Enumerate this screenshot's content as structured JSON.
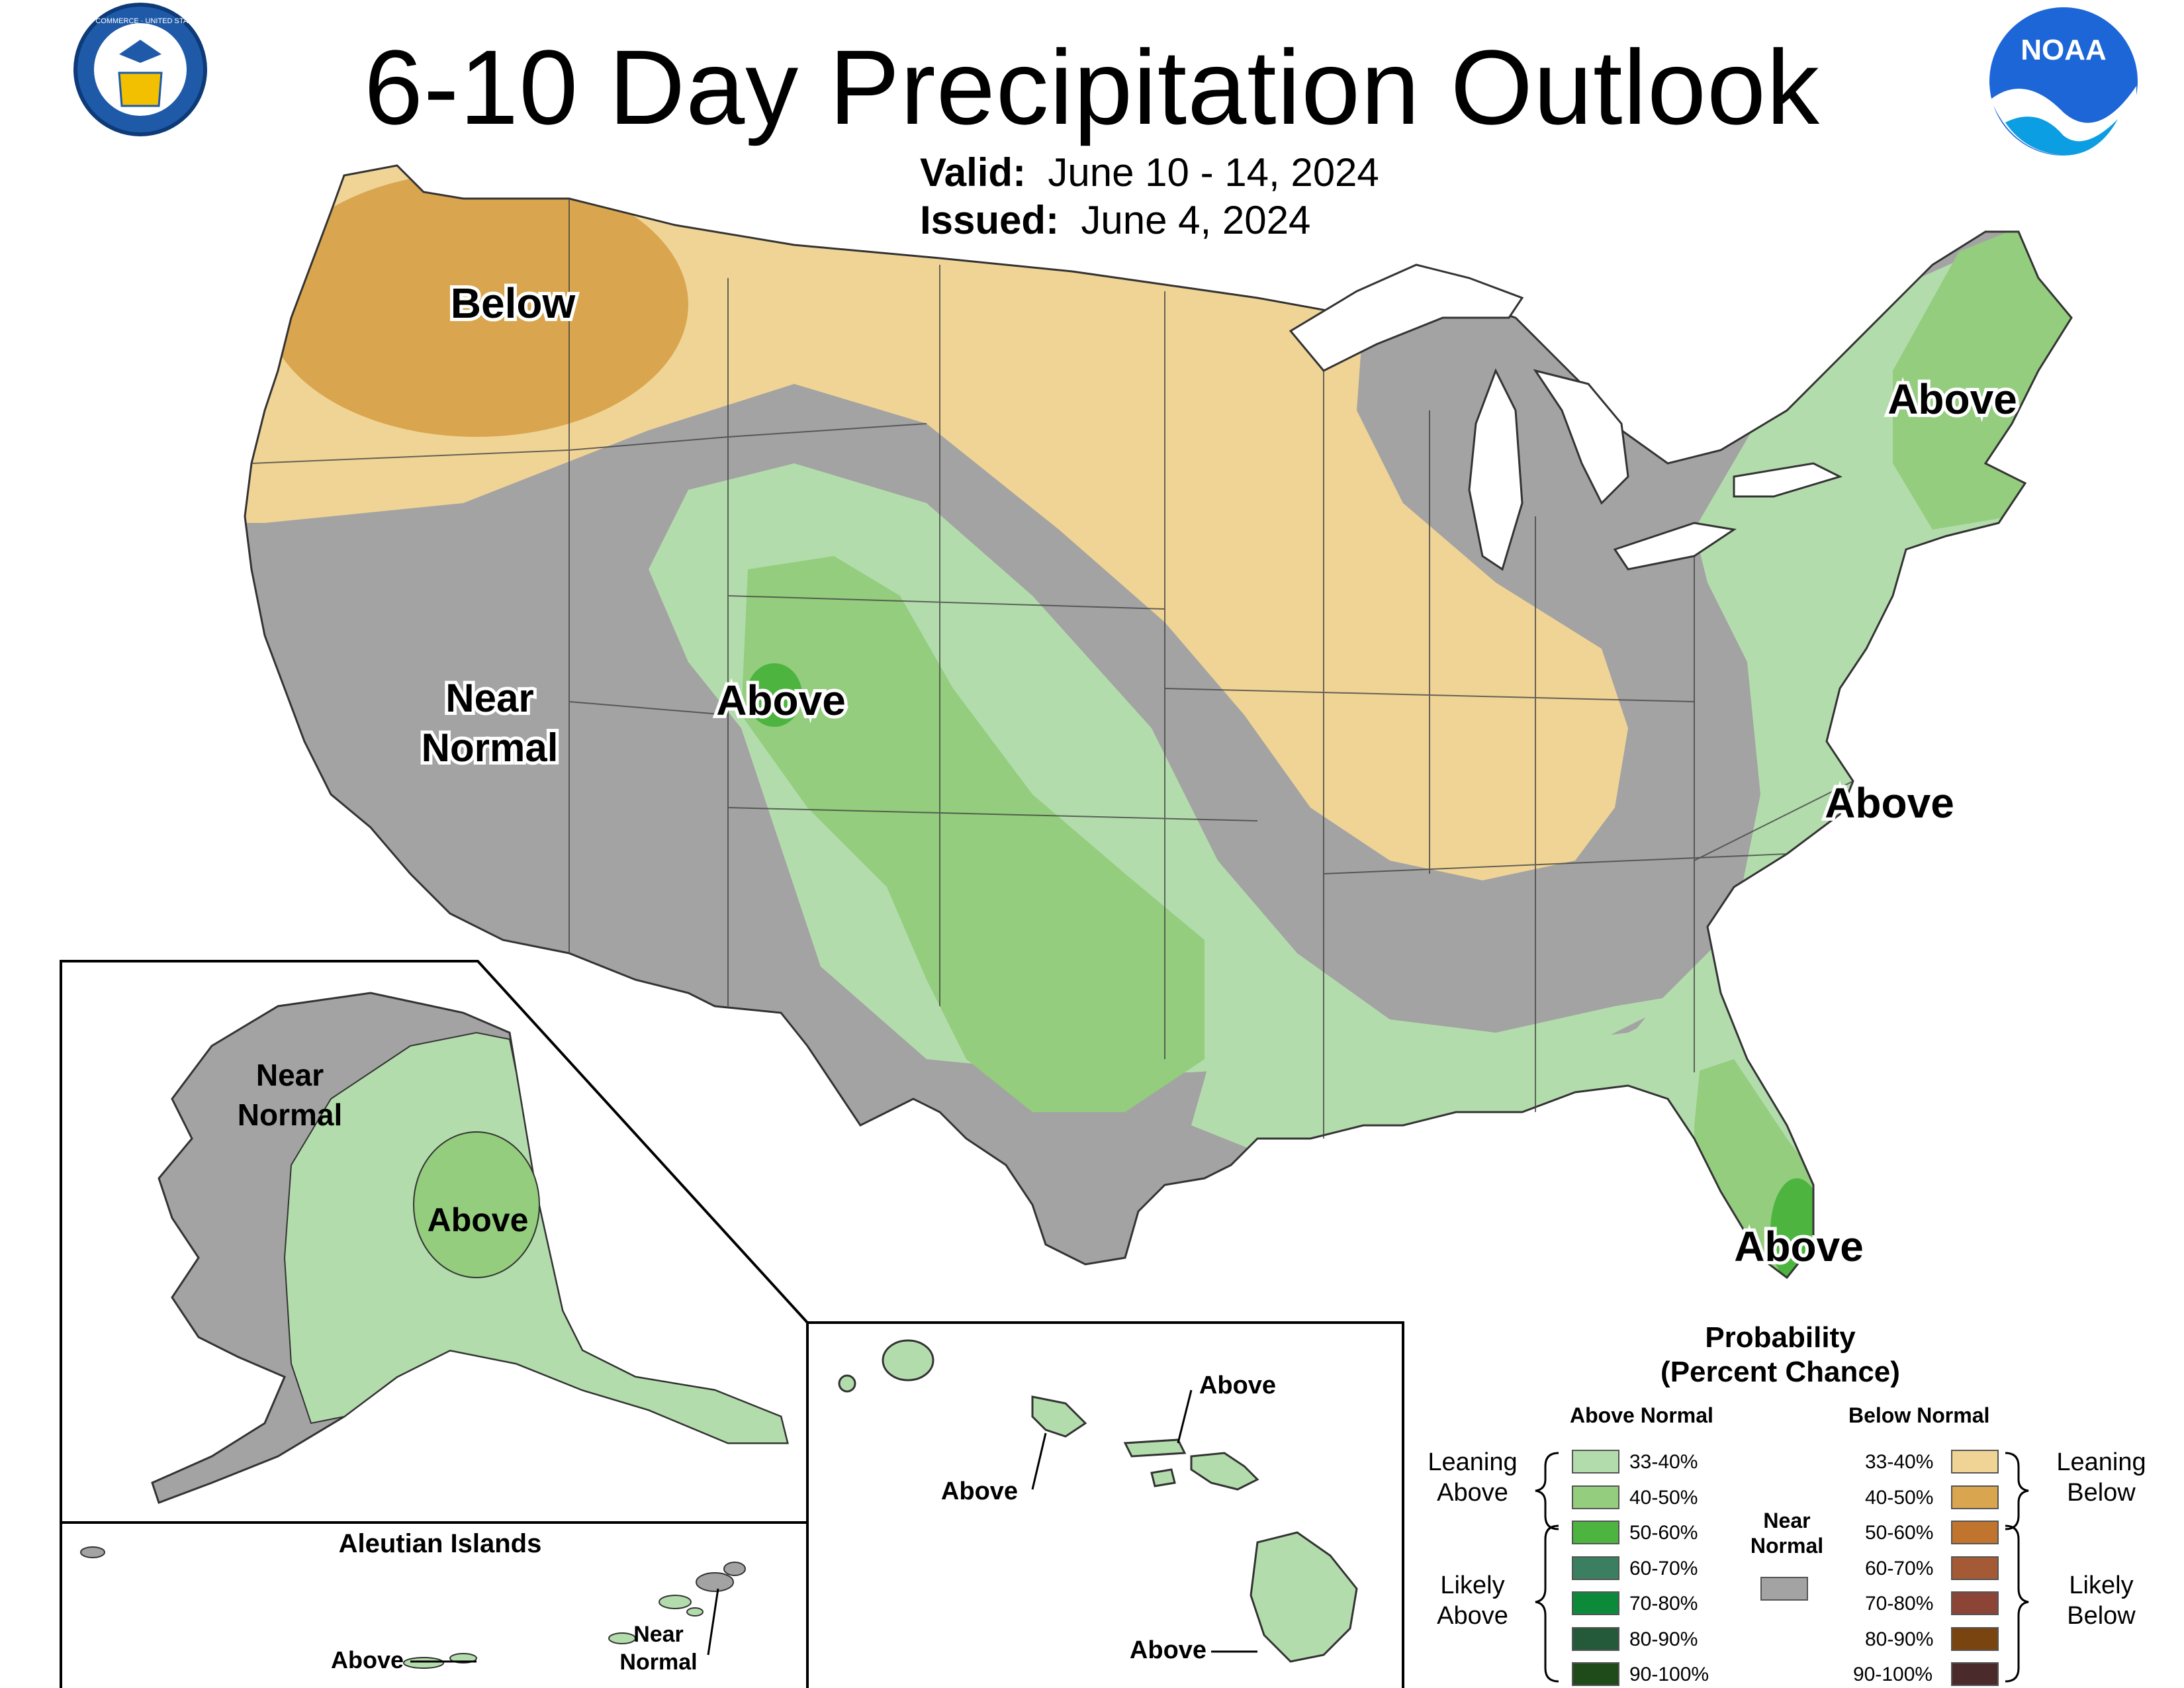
{
  "title": "6-10 Day Precipitation Outlook",
  "valid_label": "Valid:",
  "valid_value": "June 10 - 14, 2024",
  "issued_label": "Issued:",
  "issued_value": "June 4, 2024",
  "logos": {
    "commerce_seal_text": "DEPARTMENT OF COMMERCE · UNITED STATES OF AMERICA",
    "noaa_text": "NOAA"
  },
  "map_labels": {
    "below": "Below",
    "near_normal_line1": "Near",
    "near_normal_line2": "Normal",
    "above_rockies": "Above",
    "above_northeast": "Above",
    "above_southeast": "Above",
    "above_florida": "Above"
  },
  "alaska": {
    "near_line1": "Near",
    "near_line2": "Normal",
    "above": "Above",
    "aleutian_title": "Aleutian Islands",
    "aleutian_above": "Above",
    "aleutian_near_line1": "Near",
    "aleutian_near_line2": "Normal"
  },
  "hawaii": {
    "label_1": "Above",
    "label_2": "Above",
    "label_3": "Above"
  },
  "legend": {
    "title_line1": "Probability",
    "title_line2": "(Percent Chance)",
    "above_header": "Above Normal",
    "below_header": "Below Normal",
    "near_header_line1": "Near",
    "near_header_line2": "Normal",
    "near_color": "#a3a3a3",
    "leaning_above_1": "Leaning",
    "leaning_above_2": "Above",
    "likely_above_1": "Likely",
    "likely_above_2": "Above",
    "leaning_below_1": "Leaning",
    "leaning_below_2": "Below",
    "likely_below_1": "Likely",
    "likely_below_2": "Below",
    "above": [
      {
        "range": "33-40%",
        "color": "#b3dcac"
      },
      {
        "range": "40-50%",
        "color": "#93cd7d"
      },
      {
        "range": "50-60%",
        "color": "#4db43f"
      },
      {
        "range": "60-70%",
        "color": "#3a7f60"
      },
      {
        "range": "70-80%",
        "color": "#0c8a3a"
      },
      {
        "range": "80-90%",
        "color": "#245a3a"
      },
      {
        "range": "90-100%",
        "color": "#1f4a1a"
      }
    ],
    "below": [
      {
        "range": "33-40%",
        "color": "#f0d496"
      },
      {
        "range": "40-50%",
        "color": "#d9a64f"
      },
      {
        "range": "50-60%",
        "color": "#c0742e"
      },
      {
        "range": "60-70%",
        "color": "#a45a34"
      },
      {
        "range": "70-80%",
        "color": "#8c4436"
      },
      {
        "range": "80-90%",
        "color": "#7a4410"
      },
      {
        "range": "90-100%",
        "color": "#4a2a2a"
      }
    ]
  }
}
